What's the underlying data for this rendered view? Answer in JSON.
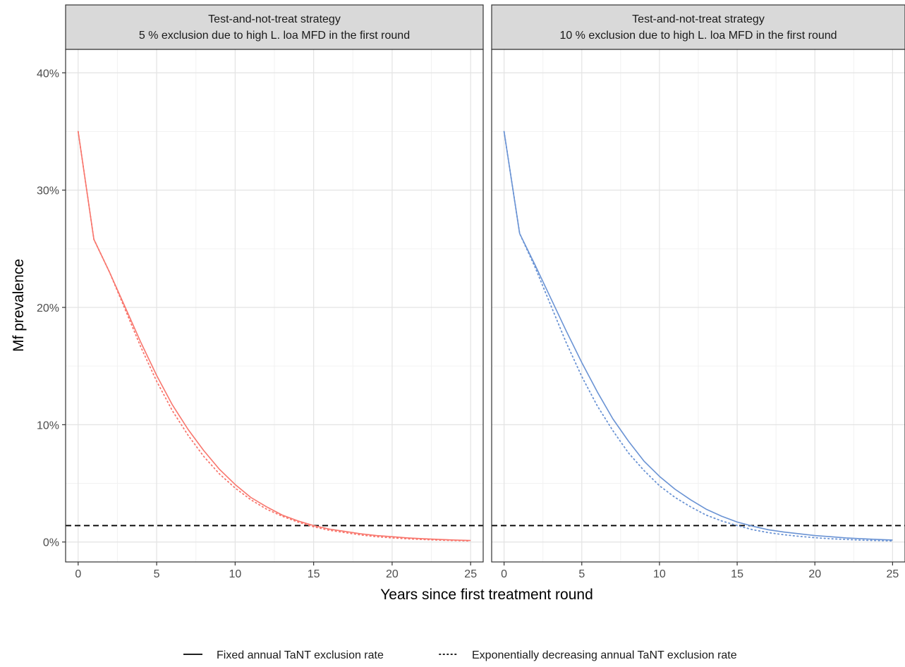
{
  "chart_data": {
    "type": "line",
    "ylabel": "Mf prevalence",
    "xlabel": "Years since first treatment round",
    "xlim": [
      -0.8,
      25.8
    ],
    "ylim": [
      -1.7,
      42.0
    ],
    "x_ticks": [
      0,
      5,
      10,
      15,
      20,
      25
    ],
    "x_tick_labels": [
      "0",
      "5",
      "10",
      "15",
      "20",
      "25"
    ],
    "y_ticks": [
      0,
      10,
      20,
      30,
      40
    ],
    "y_tick_labels": [
      "0%",
      "10%",
      "20%",
      "30%",
      "40%"
    ],
    "grid": true,
    "threshold": 1.4,
    "legend_position": "bottom",
    "legend": [
      {
        "label": "Fixed annual TaNT exclusion rate",
        "linetype": "solid"
      },
      {
        "label": "Exponentially decreasing annual TaNT exclusion rate",
        "linetype": "dotted"
      }
    ],
    "panels": [
      {
        "strip_line1": "Test-and-not-treat strategy",
        "strip_line2": "5 % exclusion due to high L. loa MFD in the first round",
        "color": "#F8766D",
        "series": [
          {
            "linetype": "solid",
            "x": [
              0,
              1,
              2,
              3,
              4,
              5,
              6,
              7,
              8,
              9,
              10,
              11,
              12,
              13,
              14,
              15,
              16,
              17,
              18,
              19,
              20,
              21,
              22,
              23,
              24,
              25
            ],
            "y": [
              35.0,
              25.8,
              23.0,
              20.0,
              17.0,
              14.2,
              11.7,
              9.6,
              7.8,
              6.2,
              4.9,
              3.8,
              3.0,
              2.3,
              1.8,
              1.4,
              1.1,
              0.9,
              0.7,
              0.55,
              0.45,
              0.35,
              0.28,
              0.22,
              0.17,
              0.13
            ]
          },
          {
            "linetype": "dotted",
            "x": [
              0,
              1,
              2,
              3,
              4,
              5,
              6,
              7,
              8,
              9,
              10,
              11,
              12,
              13,
              14,
              15,
              16,
              17,
              18,
              19,
              20,
              21,
              22,
              23,
              24,
              25
            ],
            "y": [
              35.0,
              25.8,
              23.0,
              19.8,
              16.6,
              13.7,
              11.2,
              9.1,
              7.3,
              5.8,
              4.6,
              3.6,
              2.8,
              2.2,
              1.7,
              1.3,
              1.0,
              0.8,
              0.6,
              0.45,
              0.35,
              0.27,
              0.21,
              0.16,
              0.12,
              0.09
            ]
          }
        ]
      },
      {
        "strip_line1": "Test-and-not-treat strategy",
        "strip_line2": "10 % exclusion due to high L. loa MFD in the first round",
        "color": "#6A93D4",
        "series": [
          {
            "linetype": "solid",
            "x": [
              0,
              1,
              2,
              3,
              4,
              5,
              6,
              7,
              8,
              9,
              10,
              11,
              12,
              13,
              14,
              15,
              16,
              17,
              18,
              19,
              20,
              21,
              22,
              23,
              24,
              25
            ],
            "y": [
              35.0,
              26.3,
              23.6,
              20.8,
              18.0,
              15.3,
              12.8,
              10.5,
              8.6,
              6.9,
              5.6,
              4.5,
              3.6,
              2.8,
              2.2,
              1.7,
              1.35,
              1.05,
              0.85,
              0.7,
              0.55,
              0.45,
              0.35,
              0.28,
              0.22,
              0.17
            ]
          },
          {
            "linetype": "dotted",
            "x": [
              0,
              1,
              2,
              3,
              4,
              5,
              6,
              7,
              8,
              9,
              10,
              11,
              12,
              13,
              14,
              15,
              16,
              17,
              18,
              19,
              20,
              21,
              22,
              23,
              24,
              25
            ],
            "y": [
              35.0,
              26.3,
              23.4,
              20.2,
              17.0,
              14.1,
              11.6,
              9.5,
              7.6,
              6.1,
              4.8,
              3.8,
              3.0,
              2.3,
              1.8,
              1.4,
              1.05,
              0.8,
              0.62,
              0.48,
              0.37,
              0.28,
              0.22,
              0.16,
              0.12,
              0.09
            ]
          }
        ]
      }
    ]
  }
}
